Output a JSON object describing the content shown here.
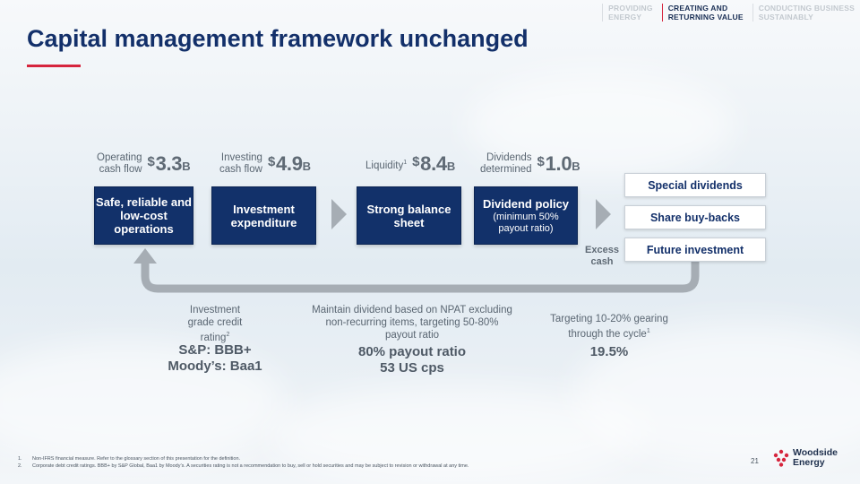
{
  "nav": [
    {
      "label": "PROVIDING\nENERGY",
      "active": false
    },
    {
      "label": "CREATING AND\nRETURNING VALUE",
      "active": true
    },
    {
      "label": "CONDUCTING BUSINESS\nSUSTAINABLY",
      "active": false
    }
  ],
  "title": "Capital management framework unchanged",
  "metrics": [
    {
      "label": "Operating\ncash flow",
      "currency": "$",
      "value": "3.3",
      "unit": "B"
    },
    {
      "label": "Investing\ncash flow",
      "currency": "$",
      "value": "4.9",
      "unit": "B"
    },
    {
      "label": "Liquidity",
      "label_sup": "1",
      "currency": "$",
      "value": "8.4",
      "unit": "B"
    },
    {
      "label": "Dividends\ndetermined",
      "currency": "$",
      "value": "1.0",
      "unit": "B"
    }
  ],
  "boxes": [
    {
      "title": "Safe, reliable and\nlow-cost\noperations",
      "sub": ""
    },
    {
      "title": "Investment\nexpenditure",
      "sub": ""
    },
    {
      "title": "Strong balance\nsheet",
      "sub": ""
    },
    {
      "title": "Dividend policy",
      "sub": "(minimum 50%\npayout ratio)"
    }
  ],
  "options": [
    "Special dividends",
    "Share buy-backs",
    "Future investment"
  ],
  "excess_cash": "Excess\ncash",
  "notes": [
    {
      "text": "Investment\ngrade credit\nrating",
      "sup": "2",
      "big": "S&P: BBB+\nMoody’s: Baa1"
    },
    {
      "text": "Maintain dividend based on NPAT excluding\nnon-recurring items, targeting 50-80%\npayout ratio",
      "sup": "",
      "big": "80% payout ratio\n53 US cps"
    },
    {
      "text": "Targeting 10-20% gearing\nthrough the cycle",
      "sup": "1",
      "big": "19.5%"
    }
  ],
  "footnotes": [
    {
      "num": "1.",
      "text": "Non-IFRS financial measure. Refer to the glossary section of this presentation for the definition."
    },
    {
      "num": "2.",
      "text": "Corporate debt credit ratings. BBB+ by S&P Global, Baa1 by Moody’s. A securities rating is not a recommendation to buy, sell or hold securities and may be subject to revision or withdrawal at any time."
    }
  ],
  "page_number": "21",
  "logo_text": "Woodside\nEnergy",
  "colors": {
    "navy": "#12316a",
    "accent_red": "#d6253d",
    "arrow_grey": "#a6adb4"
  }
}
